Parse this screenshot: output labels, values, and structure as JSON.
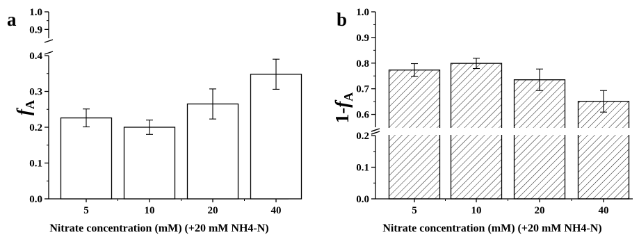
{
  "chart_data": [
    {
      "panel": "a",
      "type": "bar",
      "categories": [
        "5",
        "10",
        "20",
        "40"
      ],
      "values": [
        0.226,
        0.2,
        0.265,
        0.348
      ],
      "errors": [
        0.025,
        0.02,
        0.042,
        0.042
      ],
      "xlabel": "Nitrate concentration (mM) (+20 mM NH4-N)",
      "ylabel_main": "f",
      "ylabel_sub": "A",
      "axis_break": [
        0.4,
        0.85
      ],
      "ylim": [
        0.0,
        1.0
      ],
      "yticks_lower": [
        "0.0",
        "0.1",
        "0.2",
        "0.3",
        "0.4"
      ],
      "yticks_upper": [
        "0.9",
        "1.0"
      ],
      "bar_fill": "#ffffff",
      "hatched": false
    },
    {
      "panel": "b",
      "type": "bar",
      "categories": [
        "5",
        "10",
        "20",
        "40"
      ],
      "values": [
        0.773,
        0.799,
        0.735,
        0.651
      ],
      "errors": [
        0.025,
        0.02,
        0.042,
        0.042
      ],
      "xlabel": "Nitrate concentration (mM) (+20 mM NH4-N)",
      "ylabel_main": "1-f",
      "ylabel_sub": "A",
      "axis_break": [
        0.2,
        0.55
      ],
      "ylim": [
        0.0,
        1.0
      ],
      "yticks_lower": [
        "0.0",
        "0.1",
        "0.2"
      ],
      "yticks_upper": [
        "0.6",
        "0.7",
        "0.8",
        "0.9",
        "1.0"
      ],
      "bar_fill": "#ffffff",
      "hatched": true
    }
  ]
}
